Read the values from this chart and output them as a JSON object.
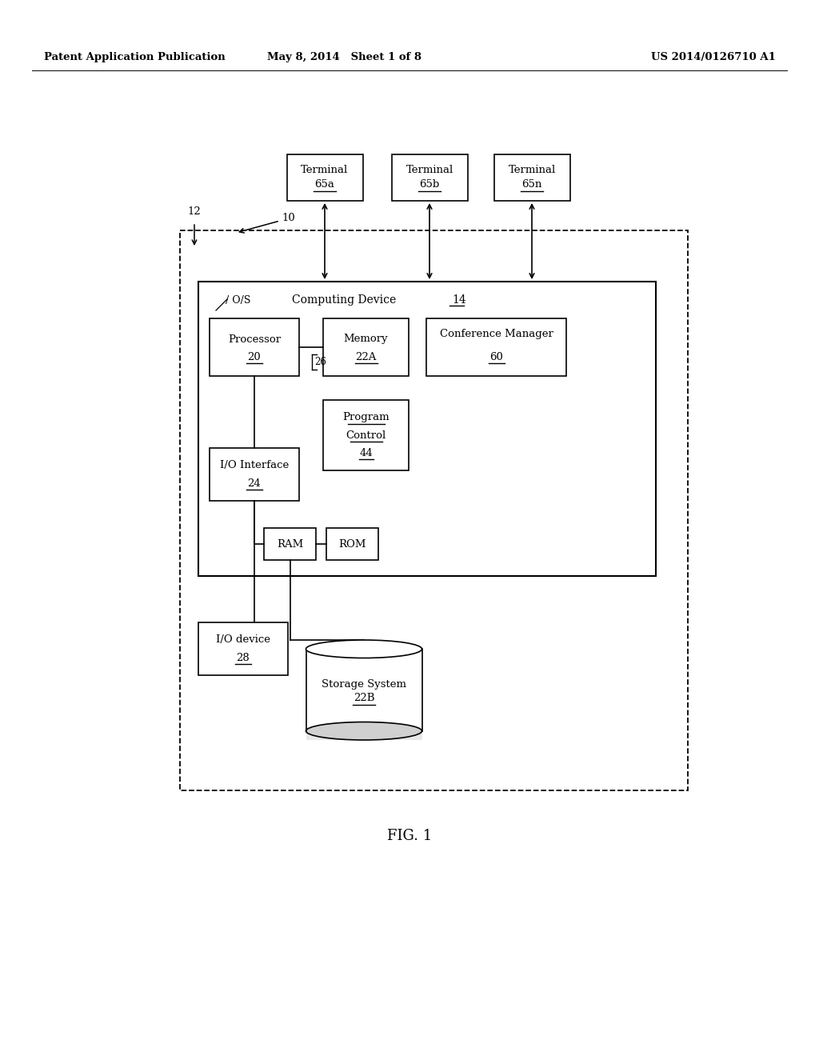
{
  "bg_color": "#ffffff",
  "header_left": "Patent Application Publication",
  "header_mid": "May 8, 2014   Sheet 1 of 8",
  "header_right": "US 2014/0126710 A1",
  "fig_label": "FIG. 1"
}
